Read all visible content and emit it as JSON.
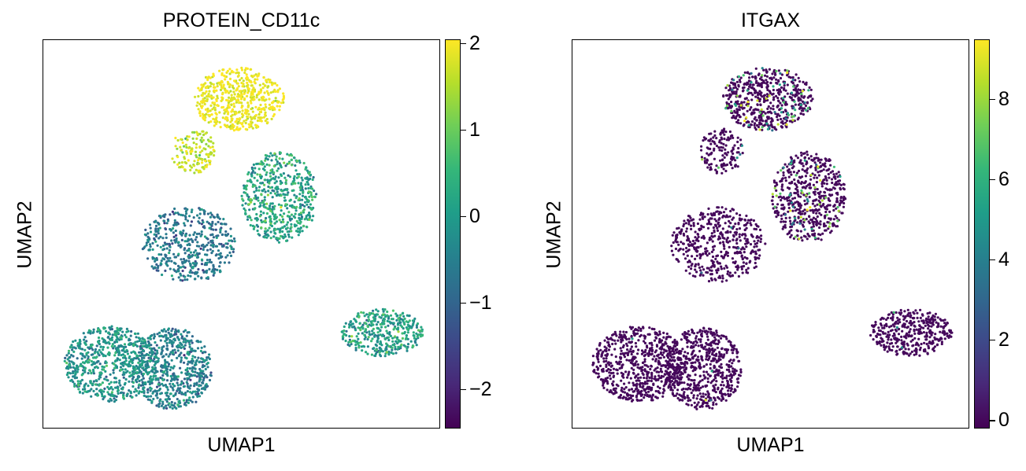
{
  "colors": {
    "viridis": [
      "#440154",
      "#482878",
      "#3e4989",
      "#31688e",
      "#26828e",
      "#1f9e89",
      "#35b779",
      "#6ece58",
      "#b5de2b",
      "#fde725"
    ]
  },
  "chart_data": [
    {
      "type": "scatter",
      "title": "PROTEIN_CD11c",
      "xlabel": "UMAP1",
      "ylabel": "UMAP2",
      "colorbar": {
        "min": -2.45,
        "max": 2.05,
        "ticks": [
          2,
          1,
          0,
          -1,
          -2
        ],
        "tick_labels": [
          "2",
          "1",
          "0",
          "−1",
          "−2"
        ]
      },
      "clusters": [
        {
          "name": "top",
          "value_mean": 1.9,
          "value_sd": 0.2
        },
        {
          "name": "top-left-tail",
          "value_mean": 1.6,
          "value_sd": 0.3
        },
        {
          "name": "middle-right",
          "value_mean": 0.1,
          "value_sd": 0.5
        },
        {
          "name": "middle-left",
          "value_mean": -0.7,
          "value_sd": 0.4
        },
        {
          "name": "right",
          "value_mean": 0.0,
          "value_sd": 0.5
        },
        {
          "name": "bottom-left",
          "value_mean": -0.2,
          "value_sd": 0.4
        },
        {
          "name": "bottom-middle",
          "value_mean": -0.6,
          "value_sd": 0.4
        }
      ]
    },
    {
      "type": "scatter",
      "title": "ITGAX",
      "xlabel": "UMAP1",
      "ylabel": "UMAP2",
      "colorbar": {
        "min": -0.2,
        "max": 9.5,
        "ticks": [
          8,
          6,
          4,
          2,
          0
        ],
        "tick_labels": [
          "8",
          "6",
          "4",
          "2",
          "0"
        ]
      },
      "clusters": [
        {
          "name": "top",
          "value_mean": 0,
          "value_sd": 0,
          "expressing_fraction": 0.12
        },
        {
          "name": "top-left-tail",
          "value_mean": 0,
          "value_sd": 0,
          "expressing_fraction": 0.06
        },
        {
          "name": "middle-right",
          "value_mean": 0,
          "value_sd": 0,
          "expressing_fraction": 0.1
        },
        {
          "name": "middle-left",
          "value_mean": 0,
          "value_sd": 0,
          "expressing_fraction": 0.01
        },
        {
          "name": "right",
          "value_mean": 0,
          "value_sd": 0,
          "expressing_fraction": 0.01
        },
        {
          "name": "bottom-left",
          "value_mean": 0,
          "value_sd": 0,
          "expressing_fraction": 0.003
        },
        {
          "name": "bottom-middle",
          "value_mean": 0,
          "value_sd": 0,
          "expressing_fraction": 0.003
        }
      ]
    }
  ]
}
